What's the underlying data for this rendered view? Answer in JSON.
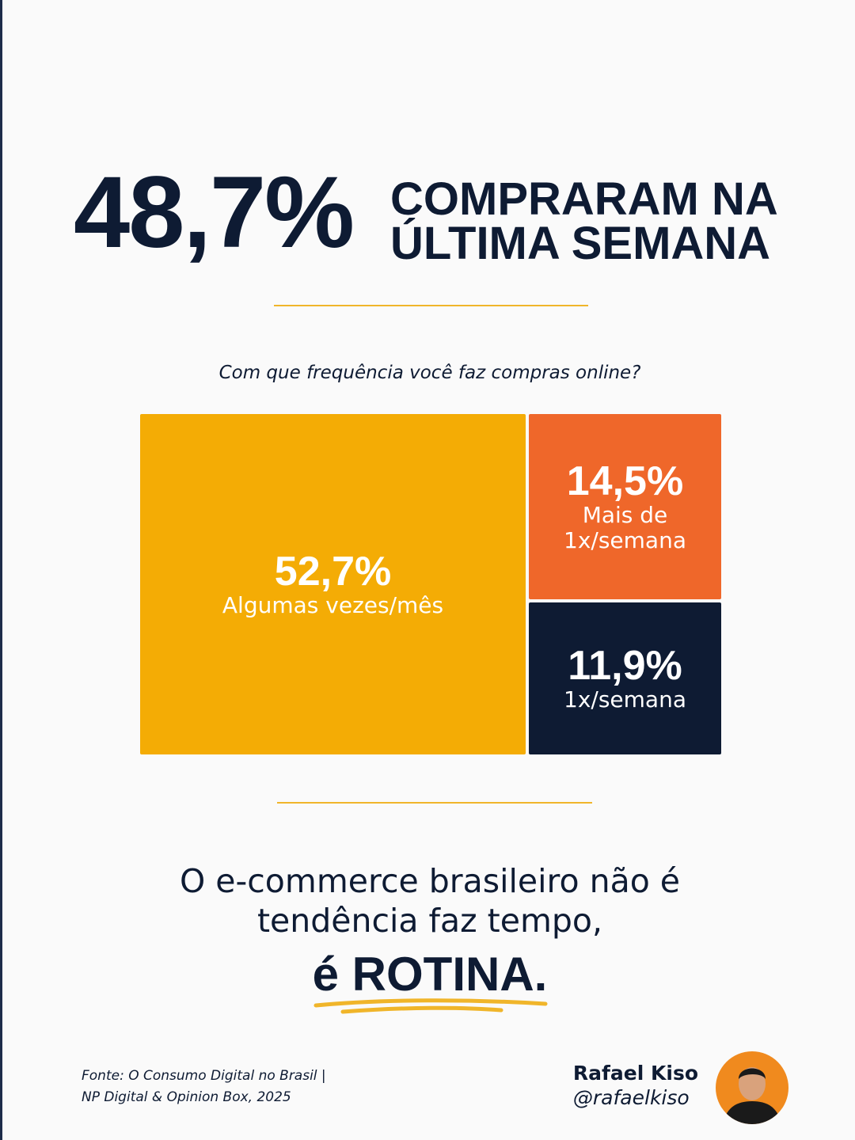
{
  "headline": {
    "number": "48,7%",
    "lines": [
      "COMPRARAM NA",
      "ÚLTIMA SEMANA"
    ]
  },
  "chart_data": {
    "type": "treemap",
    "title": "Com que frequência você faz compras online?",
    "categories": [
      "Algumas vezes/mês",
      "Mais de 1x/semana",
      "1x/semana"
    ],
    "values": [
      52.7,
      14.5,
      11.9
    ],
    "value_labels": [
      "52,7%",
      "14,5%",
      "11,9%"
    ],
    "colors": [
      "#f4ac05",
      "#ef672a",
      "#0e1b33"
    ]
  },
  "tagline": {
    "lines": [
      "O e-commerce brasileiro não é",
      "tendência faz tempo,"
    ],
    "emphasis": "é ROTINA."
  },
  "footer": {
    "source": [
      "Fonte: O Consumo Digital no Brasil |",
      "NP Digital & Opinion Box, 2025"
    ],
    "author": "Rafael Kiso",
    "handle": "@rafaelkiso"
  }
}
